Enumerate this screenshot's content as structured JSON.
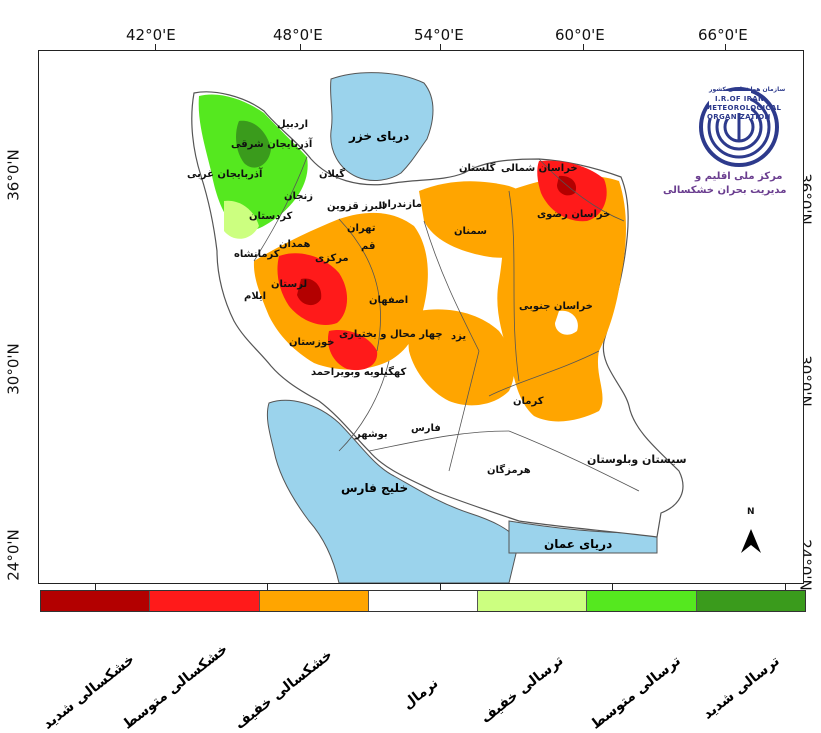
{
  "map": {
    "lon_ticks": [
      "42°0'E",
      "48°0'E",
      "54°0'E",
      "60°0'E",
      "66°0'E"
    ],
    "lat_ticks_left": [
      "36°0'N",
      "30°0'N",
      "24°0'N"
    ],
    "lat_ticks_right": [
      "36°0'N",
      "30°0'N",
      "24°0'N"
    ],
    "north_arrow": "N"
  },
  "water_bodies": {
    "caspian": "دریای خزر",
    "persian_gulf": "خلیج فارس",
    "oman_sea": "دریای عمان"
  },
  "provinces": {
    "ardabil": "اردبیل",
    "east_azarbaijan": "آذربایجان شرقی",
    "west_azarbaijan": "آذربایجان غربی",
    "zanjan": "زنجان",
    "gilan": "گیلان",
    "kurdistan": "کردستان",
    "hamedan": "همدان",
    "kermanshah": "کرمانشاه",
    "ilam": "ایلام",
    "lorestan": "لرستان",
    "markazi": "مرکزی",
    "qom": "قم",
    "tehran": "تهران",
    "alborz_qazvin": "البرز قزوین",
    "mazandaran": "مازندران",
    "golestan": "گلستان",
    "north_khorasan": "خراسان شمالی",
    "razavi_khorasan": "خراسان رضوی",
    "semnan": "سمنان",
    "isfahan": "اصفهان",
    "khuzestan": "خوزستان",
    "chaharmahal": "چهار محال و بختیاری",
    "kohgiluyeh": "کهگیلویه وبویراحمد",
    "yazd": "یزد",
    "south_khorasan": "خراسان جنوبی",
    "kerman": "کرمان",
    "fars": "فارس",
    "bushehr": "بوشهر",
    "hormozgan": "هرمزگان",
    "sistan": "سیستان وبلوستان"
  },
  "logo": {
    "org_small": "سازمان هواشناسی کشور",
    "en_line1": "I.R.OF IRAN",
    "en_line2": "METEOROLOGICAL",
    "en_line3": "ORGANIZATION",
    "fa_line1": "مرکز ملی اقلیم و",
    "fa_line2": "مدیریت بحران خشکسالی"
  },
  "legend": {
    "classes": [
      {
        "label": "خشکسالی شدید",
        "color": "#b30000"
      },
      {
        "label": "خشکسالی متوسط",
        "color": "#ff1a1a"
      },
      {
        "label": "خشکسالی خفیف",
        "color": "#ffa500"
      },
      {
        "label": "نرمال",
        "color": "#ffffff"
      },
      {
        "label": "ترسالی خفیف",
        "color": "#ccff80"
      },
      {
        "label": "ترسالی متوسط",
        "color": "#55e81f"
      },
      {
        "label": "ترسالی شدید",
        "color": "#3a9b1c"
      }
    ]
  },
  "colors": {
    "water": "#9bd3ec",
    "border": "#555555"
  }
}
